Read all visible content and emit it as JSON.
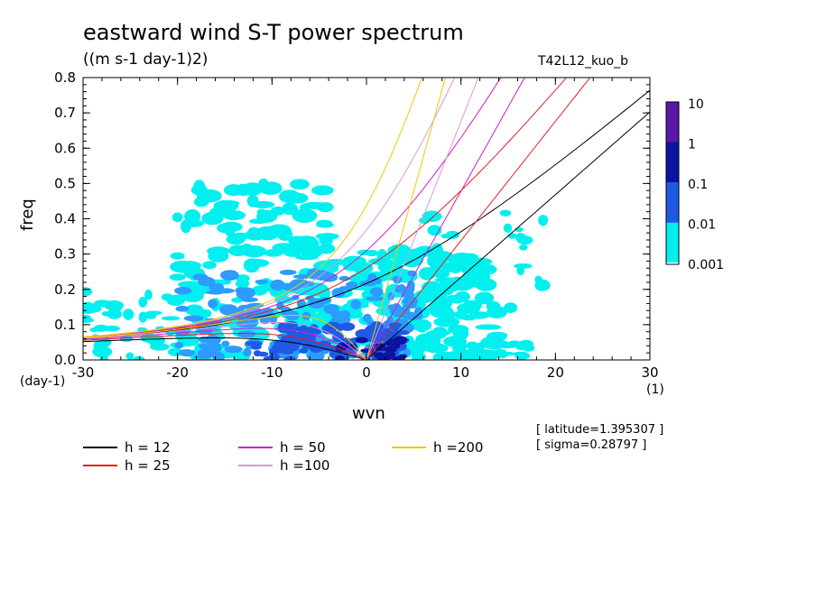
{
  "chart_data": {
    "type": "heatmap",
    "title": "eastward wind S-T power spectrum",
    "subtitle": "((m s-1 day-1)2)",
    "run_label": "T42L12_kuo_b",
    "xlabel": "wvn",
    "ylabel": "freq",
    "x_unit": "(1)",
    "y_unit": "(day-1)",
    "xlim": [
      -30,
      30
    ],
    "ylim": [
      0,
      0.8
    ],
    "x_ticks": [
      "-30",
      "-20",
      "-10",
      "0",
      "10",
      "20",
      "30"
    ],
    "y_ticks": [
      "0.0",
      "0.1",
      "0.2",
      "0.3",
      "0.4",
      "0.5",
      "0.6",
      "0.7",
      "0.8"
    ],
    "colorbar": {
      "labels": [
        "10",
        "1",
        "0.1",
        "0.01",
        "0.001"
      ],
      "colors": [
        "#5a18a6",
        "#0a14a0",
        "#1e5ae6",
        "#2d9bff",
        "#00f0f0"
      ]
    },
    "dispersion_curves": [
      {
        "name": "h = 12",
        "h": 12,
        "color": "#000000"
      },
      {
        "name": "h = 25",
        "h": 25,
        "color": "#e61e1e"
      },
      {
        "name": "h = 50",
        "h": 50,
        "color": "#d21ec8"
      },
      {
        "name": "h =100",
        "h": 100,
        "color": "#dc96dc"
      },
      {
        "name": "h =200",
        "h": 200,
        "color": "#f0c800"
      }
    ],
    "power_regions": [
      {
        "level": "0.001",
        "wvn_range": [
          -30,
          19
        ],
        "freq_range": [
          0,
          0.5
        ]
      },
      {
        "level": "0.01",
        "wvn_range": [
          -20,
          6
        ],
        "freq_range": [
          0,
          0.25
        ]
      },
      {
        "level": "0.1",
        "wvn_range": [
          -10,
          5
        ],
        "freq_range": [
          0,
          0.1
        ]
      }
    ]
  },
  "info": {
    "latitude": "[ latitude=1.395307 ]",
    "sigma": "[ sigma=0.28797 ]"
  }
}
